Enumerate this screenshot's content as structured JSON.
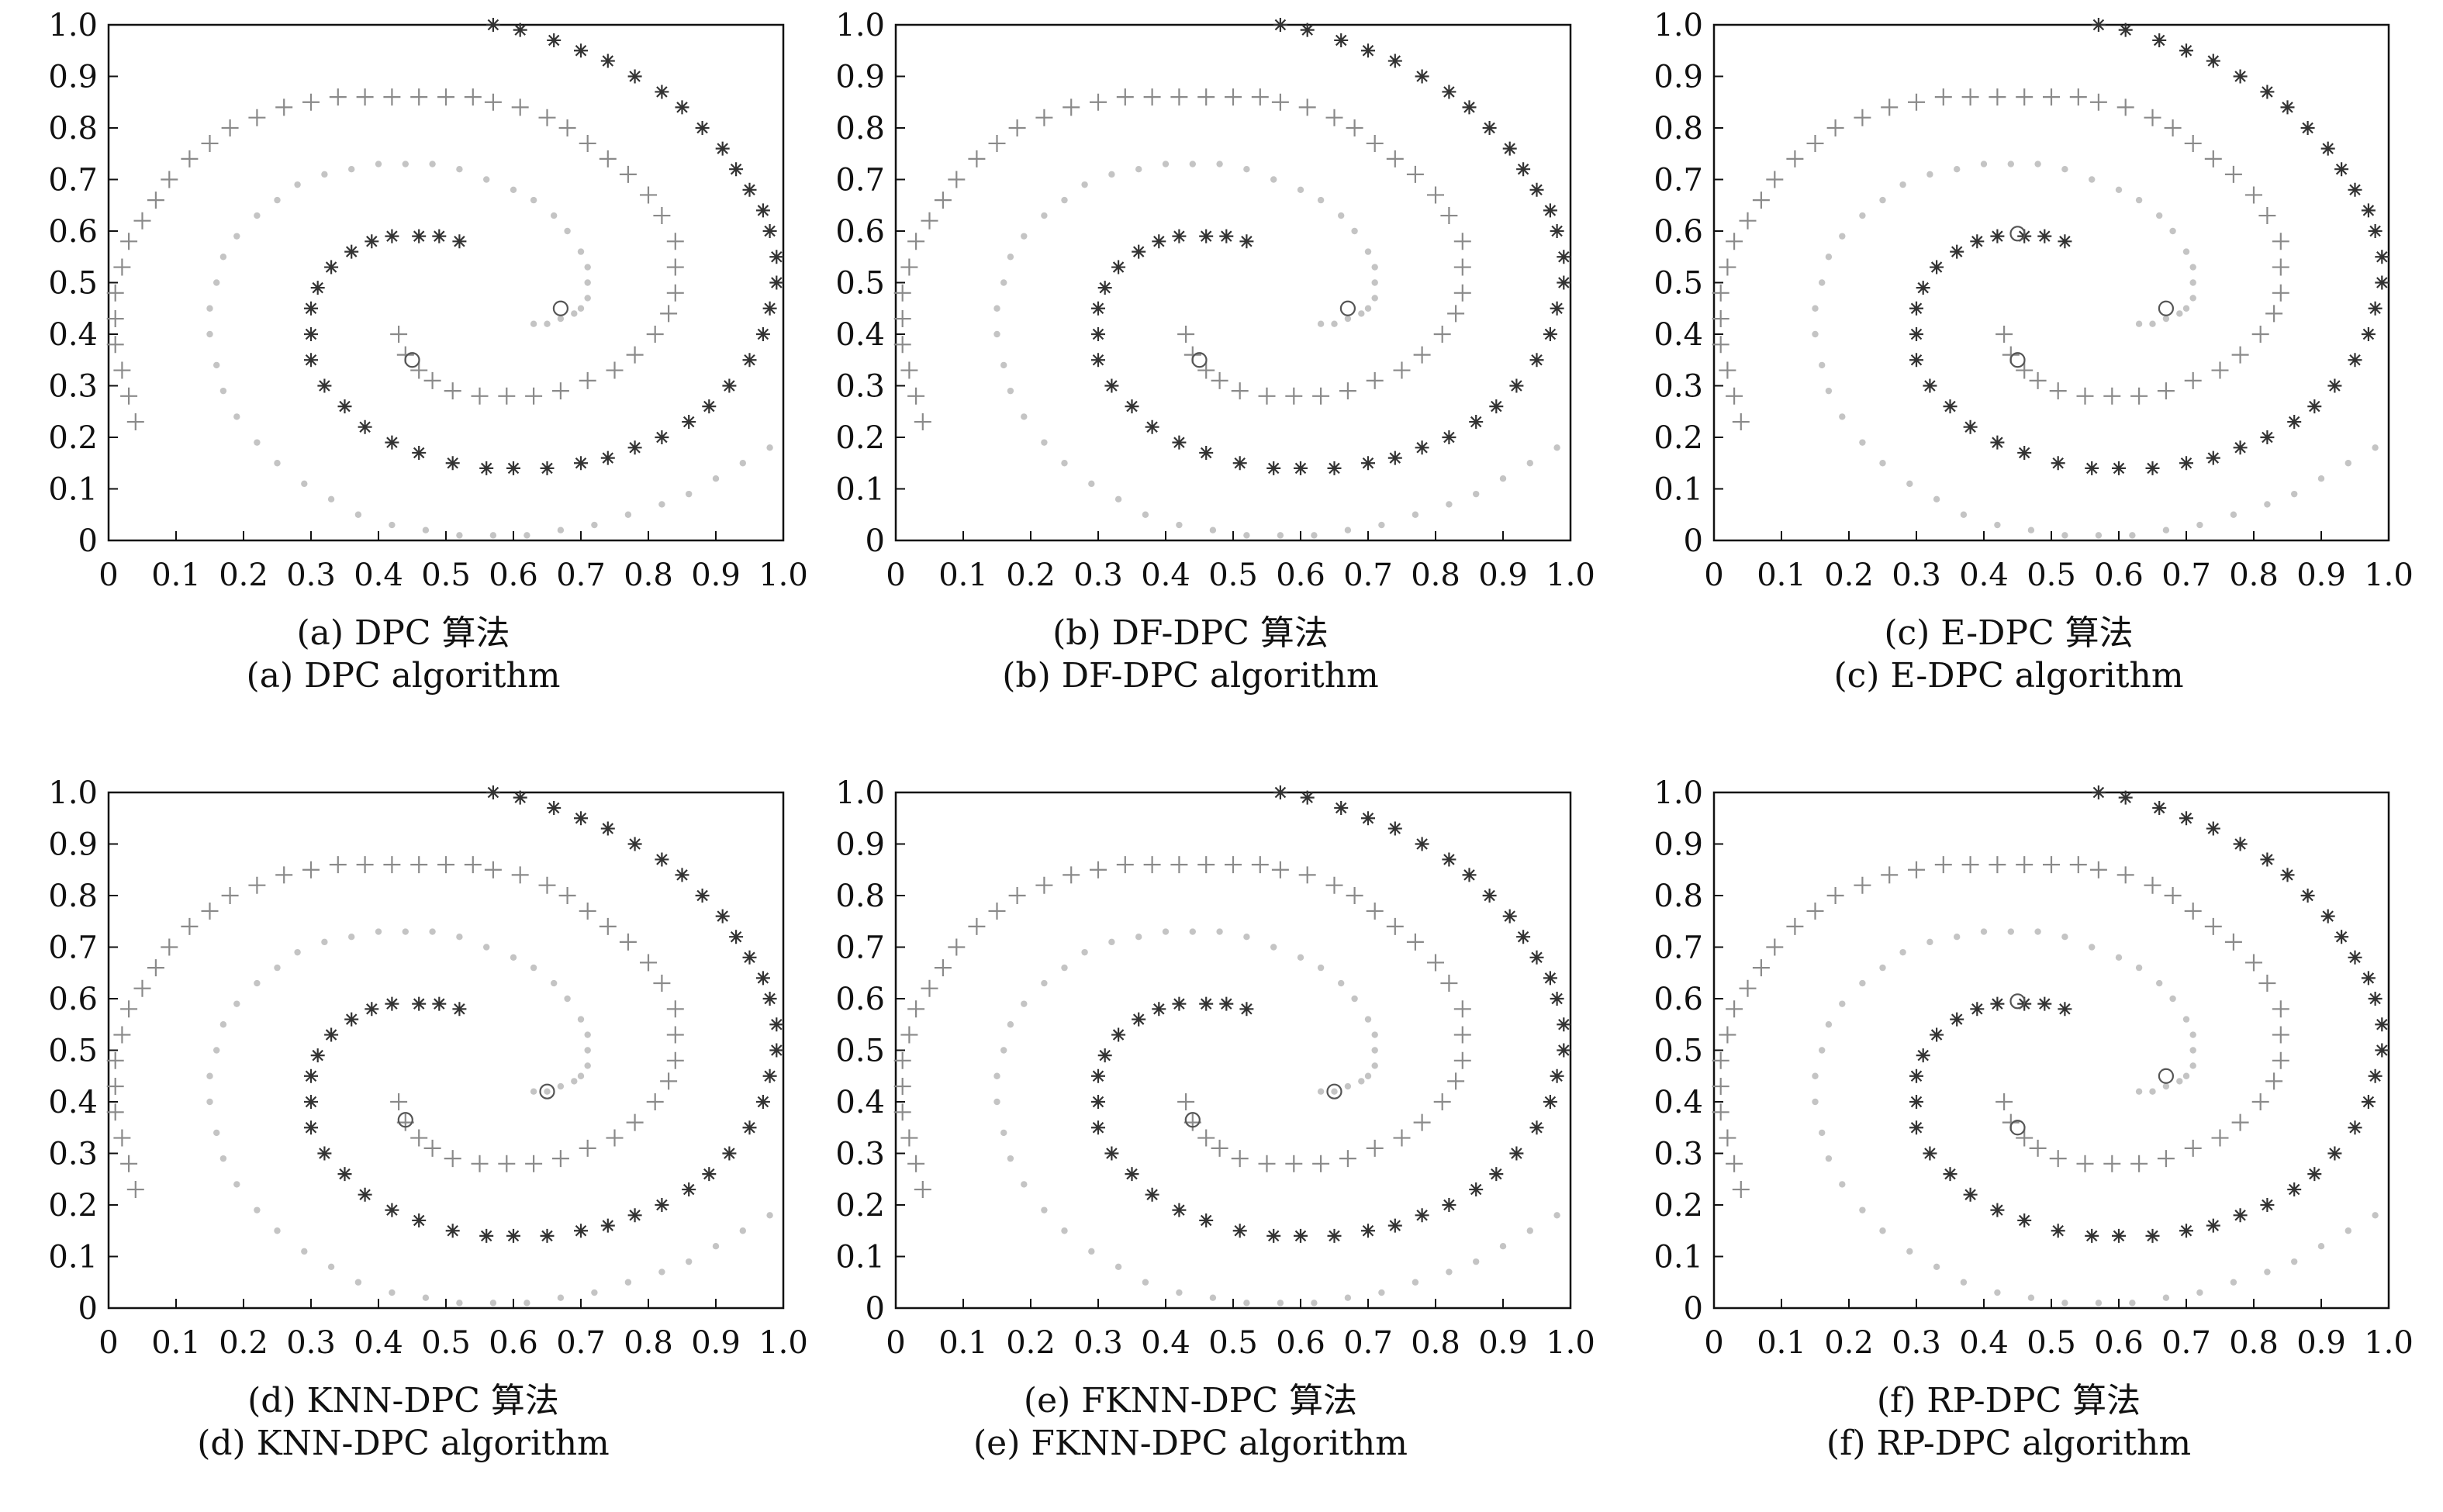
{
  "figure": {
    "panels": [
      {
        "caption_zh": "(a) DPC 算法",
        "caption_en": "(a) DPC algorithm",
        "centers": [
          [
            0.67,
            0.45
          ],
          [
            0.45,
            0.35
          ]
        ],
        "variant": "a"
      },
      {
        "caption_zh": "(b) DF-DPC 算法",
        "caption_en": "(b) DF-DPC algorithm",
        "centers": [
          [
            0.67,
            0.45
          ],
          [
            0.45,
            0.35
          ]
        ],
        "variant": "b"
      },
      {
        "caption_zh": "(c) E-DPC 算法",
        "caption_en": "(c) E-DPC algorithm",
        "centers": [
          [
            0.67,
            0.45
          ],
          [
            0.45,
            0.595
          ],
          [
            0.45,
            0.35
          ]
        ],
        "variant": "c"
      },
      {
        "caption_zh": "(d) KNN-DPC 算法",
        "caption_en": "(d) KNN-DPC algorithm",
        "centers": [
          [
            0.65,
            0.42
          ],
          [
            0.44,
            0.365
          ]
        ],
        "variant": "d"
      },
      {
        "caption_zh": "(e) FKNN-DPC 算法",
        "caption_en": "(e) FKNN-DPC algorithm",
        "centers": [
          [
            0.65,
            0.42
          ],
          [
            0.44,
            0.365
          ]
        ],
        "variant": "e"
      },
      {
        "caption_zh": "(f) RP-DPC 算法",
        "caption_en": "(f) RP-DPC algorithm",
        "centers": [
          [
            0.67,
            0.45
          ],
          [
            0.45,
            0.595
          ],
          [
            0.45,
            0.35
          ]
        ],
        "variant": "f"
      }
    ]
  },
  "chart_data": {
    "type": "scatter",
    "xlim": [
      0,
      1.0
    ],
    "ylim": [
      0,
      1.0
    ],
    "xticks": [
      "0",
      "0.1",
      "0.2",
      "0.3",
      "0.4",
      "0.5",
      "0.6",
      "0.7",
      "0.8",
      "0.9",
      "1.0"
    ],
    "yticks": [
      "0",
      "0.1",
      "0.2",
      "0.3",
      "0.4",
      "0.5",
      "0.6",
      "0.7",
      "0.8",
      "0.9",
      "1.0"
    ],
    "grid": false,
    "series": [
      {
        "marker": "asterisk",
        "color": "#333333",
        "x": [
          0.57,
          0.61,
          0.66,
          0.7,
          0.74,
          0.78,
          0.82,
          0.85,
          0.88,
          0.91,
          0.93,
          0.95,
          0.97,
          0.98,
          0.99,
          0.99,
          0.98,
          0.97,
          0.95,
          0.92,
          0.89,
          0.86,
          0.82,
          0.78,
          0.74,
          0.7,
          0.65,
          0.6,
          0.56,
          0.51,
          0.46,
          0.42,
          0.38,
          0.35,
          0.32,
          0.3,
          0.3,
          0.3,
          0.31,
          0.33,
          0.36,
          0.39,
          0.42,
          0.46,
          0.49,
          0.52
        ],
        "y": [
          1.0,
          0.99,
          0.97,
          0.95,
          0.93,
          0.9,
          0.87,
          0.84,
          0.8,
          0.76,
          0.72,
          0.68,
          0.64,
          0.6,
          0.55,
          0.5,
          0.45,
          0.4,
          0.35,
          0.3,
          0.26,
          0.23,
          0.2,
          0.18,
          0.16,
          0.15,
          0.14,
          0.14,
          0.14,
          0.15,
          0.17,
          0.19,
          0.22,
          0.26,
          0.3,
          0.35,
          0.4,
          0.45,
          0.49,
          0.53,
          0.56,
          0.58,
          0.59,
          0.59,
          0.59,
          0.58
        ]
      },
      {
        "marker": "plus",
        "color": "#8a8a8a",
        "x": [
          0.04,
          0.03,
          0.02,
          0.01,
          0.01,
          0.01,
          0.02,
          0.03,
          0.05,
          0.07,
          0.09,
          0.12,
          0.15,
          0.18,
          0.22,
          0.26,
          0.3,
          0.34,
          0.38,
          0.42,
          0.46,
          0.5,
          0.54,
          0.57,
          0.61,
          0.65,
          0.68,
          0.71,
          0.74,
          0.77,
          0.8,
          0.82,
          0.84,
          0.84,
          0.84,
          0.83,
          0.81,
          0.78,
          0.75,
          0.71,
          0.67,
          0.63,
          0.59,
          0.55,
          0.51,
          0.48,
          0.46,
          0.44,
          0.43
        ],
        "y": [
          0.23,
          0.28,
          0.33,
          0.38,
          0.43,
          0.48,
          0.53,
          0.58,
          0.62,
          0.66,
          0.7,
          0.74,
          0.77,
          0.8,
          0.82,
          0.84,
          0.85,
          0.86,
          0.86,
          0.86,
          0.86,
          0.86,
          0.86,
          0.85,
          0.84,
          0.82,
          0.8,
          0.77,
          0.74,
          0.71,
          0.67,
          0.63,
          0.58,
          0.53,
          0.48,
          0.44,
          0.4,
          0.36,
          0.33,
          0.31,
          0.29,
          0.28,
          0.28,
          0.28,
          0.29,
          0.31,
          0.33,
          0.36,
          0.4
        ]
      },
      {
        "marker": "dot",
        "color": "#c4c4c4",
        "x": [
          0.98,
          0.94,
          0.9,
          0.86,
          0.82,
          0.77,
          0.72,
          0.67,
          0.62,
          0.57,
          0.52,
          0.47,
          0.42,
          0.37,
          0.33,
          0.29,
          0.25,
          0.22,
          0.19,
          0.17,
          0.16,
          0.15,
          0.15,
          0.16,
          0.17,
          0.19,
          0.22,
          0.25,
          0.28,
          0.32,
          0.36,
          0.4,
          0.44,
          0.48,
          0.52,
          0.56,
          0.6,
          0.63,
          0.66,
          0.68,
          0.7,
          0.71,
          0.71,
          0.71,
          0.7,
          0.69,
          0.67,
          0.65,
          0.63
        ],
        "y": [
          0.18,
          0.15,
          0.12,
          0.09,
          0.07,
          0.05,
          0.03,
          0.02,
          0.01,
          0.01,
          0.01,
          0.02,
          0.03,
          0.05,
          0.08,
          0.11,
          0.15,
          0.19,
          0.24,
          0.29,
          0.34,
          0.4,
          0.45,
          0.5,
          0.55,
          0.59,
          0.63,
          0.66,
          0.69,
          0.71,
          0.72,
          0.73,
          0.73,
          0.73,
          0.72,
          0.7,
          0.68,
          0.66,
          0.63,
          0.6,
          0.56,
          0.53,
          0.5,
          0.47,
          0.45,
          0.44,
          0.43,
          0.42,
          0.42
        ]
      }
    ]
  }
}
